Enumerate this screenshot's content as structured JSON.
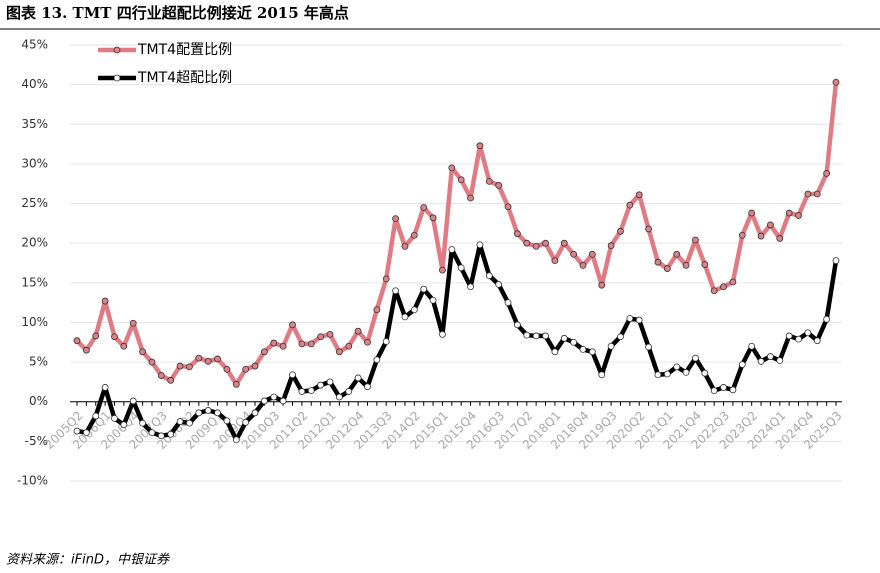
{
  "chart_data": {
    "type": "line",
    "title": "图表 13. TMT 四行业超配比例接近 2015 年高点",
    "source": "资料来源：iFinD，中银证券",
    "categories": [
      "2005Q2",
      null,
      null,
      "2006Q1",
      null,
      null,
      "2006Q4",
      null,
      null,
      "2007Q3",
      null,
      null,
      "2008Q2",
      null,
      null,
      "2009Q1",
      null,
      null,
      "2009Q4",
      null,
      null,
      "2010Q3",
      null,
      null,
      "2011Q2",
      null,
      null,
      "2012Q1",
      null,
      null,
      "2012Q4",
      null,
      null,
      "2013Q3",
      null,
      null,
      "2014Q2",
      null,
      null,
      "2015Q1",
      null,
      null,
      "2015Q4",
      null,
      null,
      "2016Q3",
      null,
      null,
      "2017Q2",
      null,
      null,
      "2018Q1",
      null,
      null,
      "2018Q4",
      null,
      null,
      "2019Q3",
      null,
      null,
      "2020Q2",
      null,
      null,
      "2021Q1",
      null,
      null,
      "2021Q4",
      null,
      null,
      "2022Q3",
      null,
      null,
      "2023Q2",
      null,
      null,
      "2024Q1",
      null,
      null,
      "2024Q4",
      null,
      null,
      "2025Q3"
    ],
    "series": [
      {
        "name": "TMT4配置比例",
        "color": "#e07b84",
        "marker": "#d9838b",
        "values": [
          7.7,
          6.5,
          8.3,
          12.7,
          8.2,
          7.0,
          9.9,
          6.3,
          5.0,
          3.3,
          2.7,
          4.5,
          4.4,
          5.5,
          5.1,
          5.4,
          4.1,
          2.2,
          4.1,
          4.5,
          6.3,
          7.4,
          7.0,
          9.7,
          7.3,
          7.3,
          8.2,
          8.5,
          6.3,
          7.0,
          8.9,
          7.5,
          11.6,
          15.5,
          23.1,
          19.6,
          21.0,
          24.5,
          23.2,
          16.6,
          29.5,
          28.0,
          25.7,
          32.3,
          27.8,
          27.3,
          24.6,
          21.2,
          20.0,
          19.6,
          20.0,
          17.8,
          20.0,
          18.6,
          17.2,
          18.6,
          14.7,
          19.7,
          21.5,
          24.8,
          26.1,
          21.8,
          17.6,
          16.8,
          18.6,
          17.2,
          20.4,
          17.3,
          14.0,
          14.5,
          15.1,
          21.0,
          23.8,
          20.9,
          22.3,
          20.6,
          23.8,
          23.5,
          26.2,
          26.2,
          28.8,
          40.3
        ]
      },
      {
        "name": "TMT4超配比例",
        "color": "#000000",
        "marker": "#ffffff",
        "values": [
          -3.7,
          -3.9,
          -1.8,
          1.8,
          -2.1,
          -2.9,
          0.1,
          -2.7,
          -3.9,
          -4.3,
          -4.1,
          -2.5,
          -2.7,
          -1.4,
          -1.1,
          -1.4,
          -2.4,
          -4.8,
          -2.6,
          -1.4,
          0.1,
          0.6,
          0.1,
          3.4,
          1.3,
          1.4,
          2.1,
          2.5,
          0.6,
          1.3,
          3.0,
          1.9,
          5.3,
          7.6,
          14.0,
          10.7,
          11.6,
          14.2,
          12.8,
          8.5,
          19.2,
          16.9,
          14.5,
          19.8,
          15.9,
          14.8,
          12.5,
          9.7,
          8.4,
          8.3,
          8.3,
          6.3,
          8.0,
          7.5,
          6.6,
          6.3,
          3.4,
          7.0,
          8.2,
          10.5,
          10.3,
          6.9,
          3.4,
          3.5,
          4.4,
          3.7,
          5.5,
          3.6,
          1.4,
          1.8,
          1.5,
          4.7,
          7.0,
          5.1,
          5.7,
          5.2,
          8.3,
          7.9,
          8.7,
          7.7,
          10.4,
          17.8
        ]
      }
    ],
    "ylim": [
      -10,
      45
    ],
    "yticks": [
      {
        "value": -10,
        "label": "-10%"
      },
      {
        "value": -5,
        "label": "-5%"
      },
      {
        "value": 0,
        "label": "0%"
      },
      {
        "value": 5,
        "label": "5%"
      },
      {
        "value": 10,
        "label": "10%"
      },
      {
        "value": 15,
        "label": "15%"
      },
      {
        "value": 20,
        "label": "20%"
      },
      {
        "value": 25,
        "label": "25%"
      },
      {
        "value": 30,
        "label": "30%"
      },
      {
        "value": 35,
        "label": "35%"
      },
      {
        "value": 40,
        "label": "40%"
      },
      {
        "value": 45,
        "label": "45%"
      }
    ],
    "grid": true,
    "legend": "top-left"
  }
}
